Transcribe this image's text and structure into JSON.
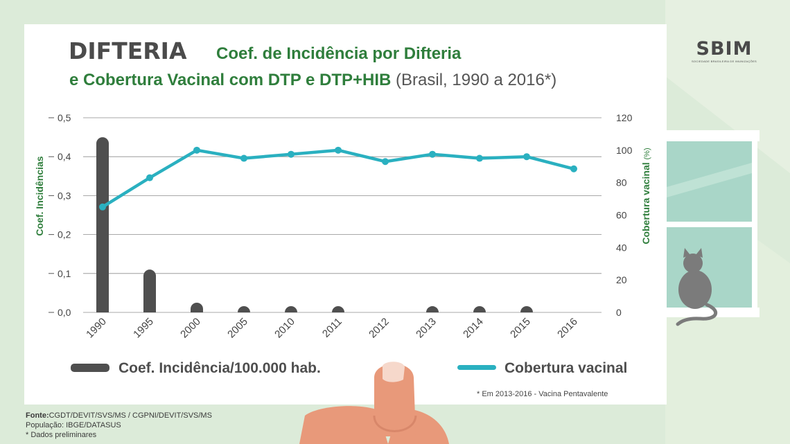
{
  "header": {
    "brand_word": "DIFTERIA",
    "title_line1": "Coef. de Incidência por Difteria",
    "title_line2_bold": "e Cobertura Vacinal com DTP e DTP+HIB",
    "title_line2_rest": "(Brasil, 1990 a 2016*)"
  },
  "logo": {
    "text": "SBIM",
    "subtitle": "SOCIEDADE BRASILEIRA DE IMUNIZAÇÕES"
  },
  "chart_data": {
    "type": "bar+line",
    "categories": [
      "1990",
      "1995",
      "2000",
      "2005",
      "2010",
      "2011",
      "2012",
      "2013",
      "2014",
      "2015",
      "2016"
    ],
    "series": [
      {
        "name": "Coef. Incidência/100.000 hab.",
        "type": "bar",
        "axis": "left",
        "color": "#4f4f4f",
        "values": [
          0.45,
          0.11,
          0.025,
          0.005,
          0.006,
          0.001,
          0.0,
          0.0005,
          0.001,
          0.002,
          0.0
        ]
      },
      {
        "name": "Cobertura vacinal",
        "type": "line",
        "axis": "right",
        "color": "#2ab0c0",
        "values": [
          65,
          83,
          100,
          95,
          97.5,
          100,
          93,
          97.5,
          95,
          96,
          88.5
        ]
      }
    ],
    "left_axis": {
      "label": "Coef. Incidências",
      "ticks": [
        "0,0",
        "0,1",
        "0,2",
        "0,3",
        "0,4",
        "0,5"
      ],
      "range": [
        0,
        0.5
      ]
    },
    "right_axis": {
      "label": "Cobertura vacinal",
      "label_unit": "(%)",
      "ticks": [
        "0",
        "20",
        "40",
        "60",
        "80",
        "100",
        "120"
      ],
      "range": [
        0,
        120
      ]
    },
    "grid": true,
    "legend": [
      {
        "label": "Coef. Incidência/100.000 hab.",
        "color": "#4f4f4f"
      },
      {
        "label": "Cobertura vacinal",
        "color": "#2ab0c0"
      }
    ],
    "footnote": "* Em 2013-2016 - Vacina Pentavalente"
  },
  "sources": {
    "fonte_label": "Fonte:",
    "fonte_value": "CGDT/DEVIT/SVS/MS / CGPNI/DEVIT/SVS/MS",
    "populacao": "População: IBGE/DATASUS",
    "dados": "* Dados preliminares"
  },
  "colors": {
    "bar": "#4f4f4f",
    "line": "#2ab0c0",
    "title_green": "#2f7e3c",
    "background": "#dcebd9"
  },
  "icons": [
    "cat-icon",
    "window-icon",
    "hand-icon"
  ]
}
